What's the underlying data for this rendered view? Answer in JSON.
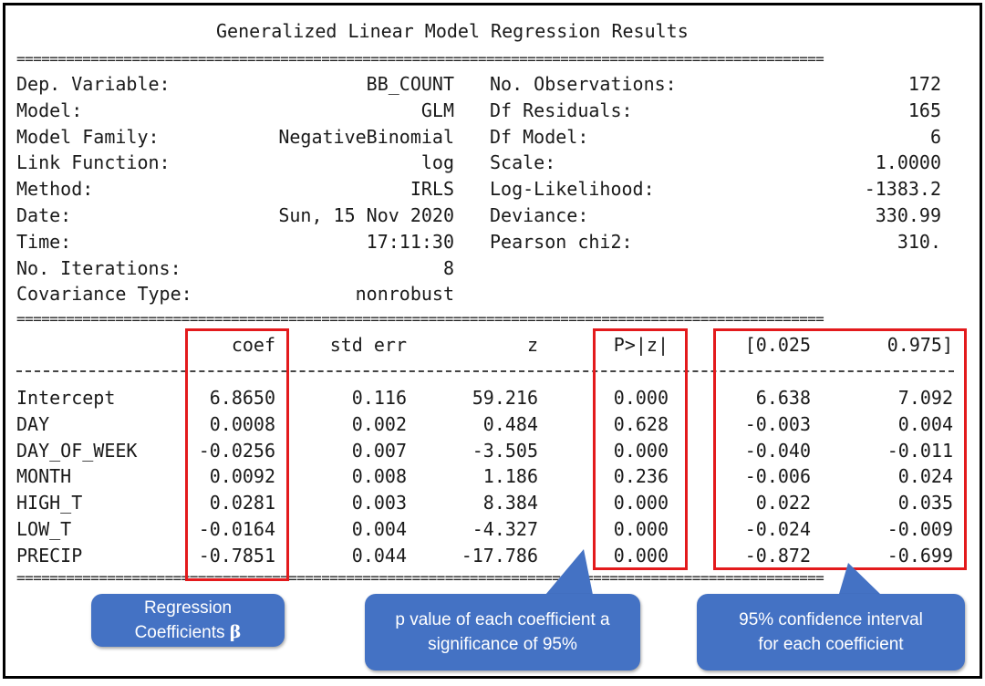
{
  "title": "Generalized Linear Model Regression Results",
  "summary_left": [
    {
      "label": "Dep. Variable:",
      "value": "BB_COUNT"
    },
    {
      "label": "Model:",
      "value": "GLM"
    },
    {
      "label": "Model Family:",
      "value": "NegativeBinomial"
    },
    {
      "label": "Link Function:",
      "value": "log"
    },
    {
      "label": "Method:",
      "value": "IRLS"
    },
    {
      "label": "Date:",
      "value": "Sun, 15 Nov 2020"
    },
    {
      "label": "Time:",
      "value": "17:11:30"
    },
    {
      "label": "No. Iterations:",
      "value": "8"
    },
    {
      "label": "Covariance Type:",
      "value": "nonrobust"
    }
  ],
  "summary_right": [
    {
      "label": "No. Observations:",
      "value": "172"
    },
    {
      "label": "Df Residuals:",
      "value": "165"
    },
    {
      "label": "Df Model:",
      "value": "6"
    },
    {
      "label": "Scale:",
      "value": "1.0000"
    },
    {
      "label": "Log-Likelihood:",
      "value": "-1383.2"
    },
    {
      "label": "Deviance:",
      "value": "330.99"
    },
    {
      "label": "Pearson chi2:",
      "value": "310."
    }
  ],
  "columns": [
    "coef",
    "std err",
    "z",
    "P>|z|",
    "[0.025",
    "0.975]"
  ],
  "rows": [
    {
      "name": "Intercept",
      "cells": [
        "6.8650",
        "0.116",
        "59.216",
        "0.000",
        "6.638",
        "7.092"
      ]
    },
    {
      "name": "DAY",
      "cells": [
        "0.0008",
        "0.002",
        "0.484",
        "0.628",
        "-0.003",
        "0.004"
      ]
    },
    {
      "name": "DAY_OF_WEEK",
      "cells": [
        "-0.0256",
        "0.007",
        "-3.505",
        "0.000",
        "-0.040",
        "-0.011"
      ]
    },
    {
      "name": "MONTH",
      "cells": [
        "0.0092",
        "0.008",
        "1.186",
        "0.236",
        "-0.006",
        "0.024"
      ]
    },
    {
      "name": "HIGH_T",
      "cells": [
        "0.0281",
        "0.003",
        "8.384",
        "0.000",
        "0.022",
        "0.035"
      ]
    },
    {
      "name": "LOW_T",
      "cells": [
        "-0.0164",
        "0.004",
        "-4.327",
        "0.000",
        "-0.024",
        "-0.009"
      ]
    },
    {
      "name": "PRECIP",
      "cells": [
        "-0.7851",
        "0.044",
        "-17.786",
        "0.000",
        "-0.872",
        "-0.699"
      ]
    }
  ],
  "rule_text": "==================================================================================================",
  "annotations": {
    "coef_line1": "Regression",
    "coef_line2": "Coefficients",
    "coef_symbol": "β",
    "pvalue_line1": "p value of each coefficient a",
    "pvalue_line2": "significance of 95%",
    "ci_line1": "95% confidence interval",
    "ci_line2": "for each coefficient"
  },
  "colors": {
    "highlight_box": "#e31a1c",
    "callout_fill": "#4472c4",
    "text": "#1a1a1a"
  }
}
